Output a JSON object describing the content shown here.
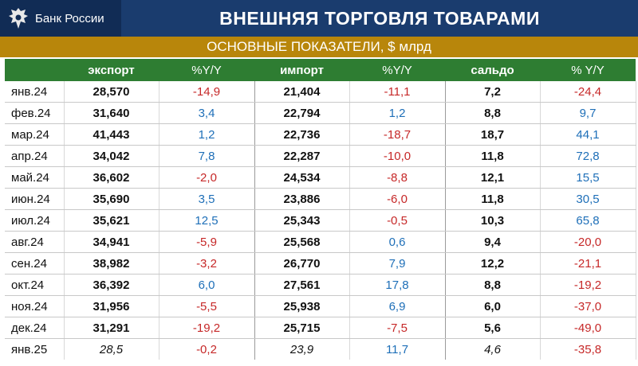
{
  "header": {
    "logo_text": "Банк России",
    "title": "ВНЕШНЯЯ ТОРГОВЛЯ ТОВАРАМИ",
    "subtitle": "ОСНОВНЫЕ ПОКАЗАТЕЛИ, $ млрд"
  },
  "colors": {
    "header_bg": "#1a3c6e",
    "subtitle_bg": "#b8860b",
    "table_header_bg": "#2e7d32",
    "negative": "#c62828",
    "positive": "#1e6fb8"
  },
  "icons": {
    "logo": "eagle-emblem-icon"
  },
  "table": {
    "columns": [
      "",
      "экспорт",
      "%Y/Y",
      "импорт",
      "%Y/Y",
      "сальдо",
      "% Y/Y"
    ],
    "rows": [
      {
        "date": "янв.24",
        "export": "28,570",
        "export_yy": "-14,9",
        "import": "21,404",
        "import_yy": "-11,1",
        "balance": "7,2",
        "balance_yy": "-24,4"
      },
      {
        "date": "фев.24",
        "export": "31,640",
        "export_yy": "3,4",
        "import": "22,794",
        "import_yy": "1,2",
        "balance": "8,8",
        "balance_yy": "9,7"
      },
      {
        "date": "мар.24",
        "export": "41,443",
        "export_yy": "1,2",
        "import": "22,736",
        "import_yy": "-18,7",
        "balance": "18,7",
        "balance_yy": "44,1"
      },
      {
        "date": "апр.24",
        "export": "34,042",
        "export_yy": "7,8",
        "import": "22,287",
        "import_yy": "-10,0",
        "balance": "11,8",
        "balance_yy": "72,8"
      },
      {
        "date": "май.24",
        "export": "36,602",
        "export_yy": "-2,0",
        "import": "24,534",
        "import_yy": "-8,8",
        "balance": "12,1",
        "balance_yy": "15,5"
      },
      {
        "date": "июн.24",
        "export": "35,690",
        "export_yy": "3,5",
        "import": "23,886",
        "import_yy": "-6,0",
        "balance": "11,8",
        "balance_yy": "30,5"
      },
      {
        "date": "июл.24",
        "export": "35,621",
        "export_yy": "12,5",
        "import": "25,343",
        "import_yy": "-0,5",
        "balance": "10,3",
        "balance_yy": "65,8"
      },
      {
        "date": "авг.24",
        "export": "34,941",
        "export_yy": "-5,9",
        "import": "25,568",
        "import_yy": "0,6",
        "balance": "9,4",
        "balance_yy": "-20,0"
      },
      {
        "date": "сен.24",
        "export": "38,982",
        "export_yy": "-3,2",
        "import": "26,770",
        "import_yy": "7,9",
        "balance": "12,2",
        "balance_yy": "-21,1"
      },
      {
        "date": "окт.24",
        "export": "36,392",
        "export_yy": "6,0",
        "import": "27,561",
        "import_yy": "17,8",
        "balance": "8,8",
        "balance_yy": "-19,2"
      },
      {
        "date": "ноя.24",
        "export": "31,956",
        "export_yy": "-5,5",
        "import": "25,938",
        "import_yy": "6,9",
        "balance": "6,0",
        "balance_yy": "-37,0"
      },
      {
        "date": "дек.24",
        "export": "31,291",
        "export_yy": "-19,2",
        "import": "25,715",
        "import_yy": "-7,5",
        "balance": "5,6",
        "balance_yy": "-49,0"
      },
      {
        "date": "янв.25",
        "export": "28,5",
        "export_yy": "-0,2",
        "import": "23,9",
        "import_yy": "11,7",
        "balance": "4,6",
        "balance_yy": "-35,8"
      }
    ]
  }
}
